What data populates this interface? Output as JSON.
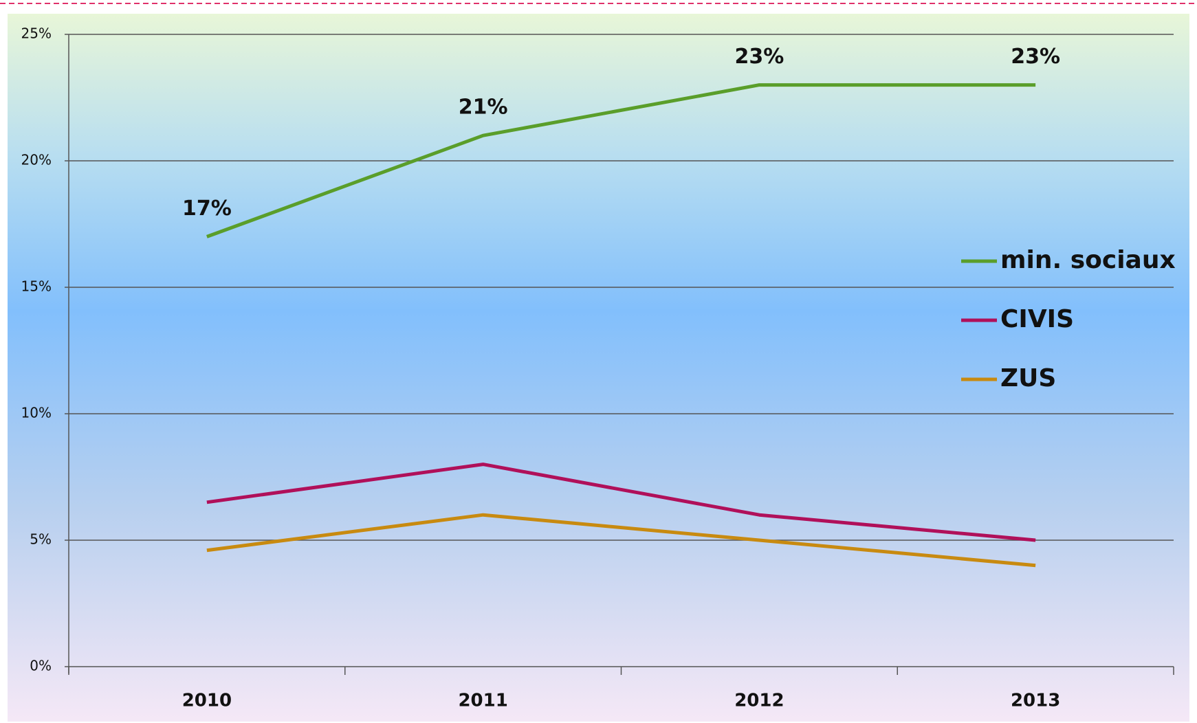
{
  "chart_data": {
    "type": "line",
    "categories": [
      "2010",
      "2011",
      "2012",
      "2013"
    ],
    "series": [
      {
        "name": "min. sociaux",
        "color": "#5a9e2a",
        "values": [
          17,
          21,
          23,
          23
        ],
        "value_labels": [
          "17%",
          "21%",
          "23%",
          "23%"
        ]
      },
      {
        "name": "CIVIS",
        "color": "#b0105a",
        "values": [
          6.5,
          8,
          6,
          5
        ]
      },
      {
        "name": "ZUS",
        "color": "#c88a10",
        "values": [
          4.6,
          6,
          5,
          4
        ]
      }
    ],
    "ylim": [
      0,
      25
    ],
    "yticks": [
      {
        "value": 0,
        "label": "0%"
      },
      {
        "value": 5,
        "label": "5%"
      },
      {
        "value": 10,
        "label": "10%"
      },
      {
        "value": 15,
        "label": "15%"
      },
      {
        "value": 20,
        "label": "20%"
      },
      {
        "value": 25,
        "label": "25%"
      }
    ],
    "grid": true,
    "legend": "right"
  }
}
